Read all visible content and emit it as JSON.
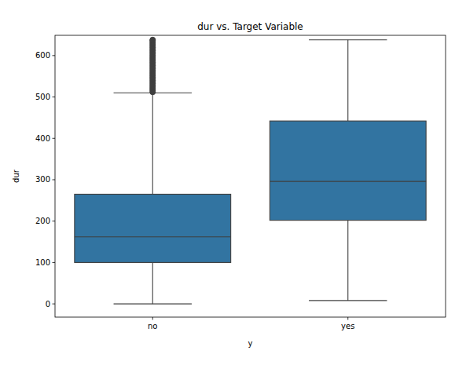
{
  "chart_data": {
    "type": "box",
    "title": "dur vs. Target Variable",
    "x_label": "y",
    "y_label": "dur",
    "categories": [
      "no",
      "yes"
    ],
    "color": "#3274a1",
    "ylim": [
      -32,
      649
    ],
    "yticks": [
      0,
      100,
      200,
      300,
      400,
      500,
      600
    ],
    "boxes": [
      {
        "whislo": 0,
        "q1": 100,
        "med": 162,
        "q3": 265,
        "whishi": 510,
        "fliers": [
          512,
          516,
          520,
          524,
          528,
          532,
          536,
          540,
          544,
          548,
          552,
          556,
          560,
          564,
          568,
          572,
          576,
          580,
          584,
          588,
          592,
          596,
          600,
          604,
          608,
          612,
          616,
          620,
          624,
          628,
          632,
          636,
          638
        ]
      },
      {
        "whislo": 8,
        "q1": 202,
        "med": 296,
        "q3": 442,
        "whishi": 638,
        "fliers": []
      }
    ]
  }
}
